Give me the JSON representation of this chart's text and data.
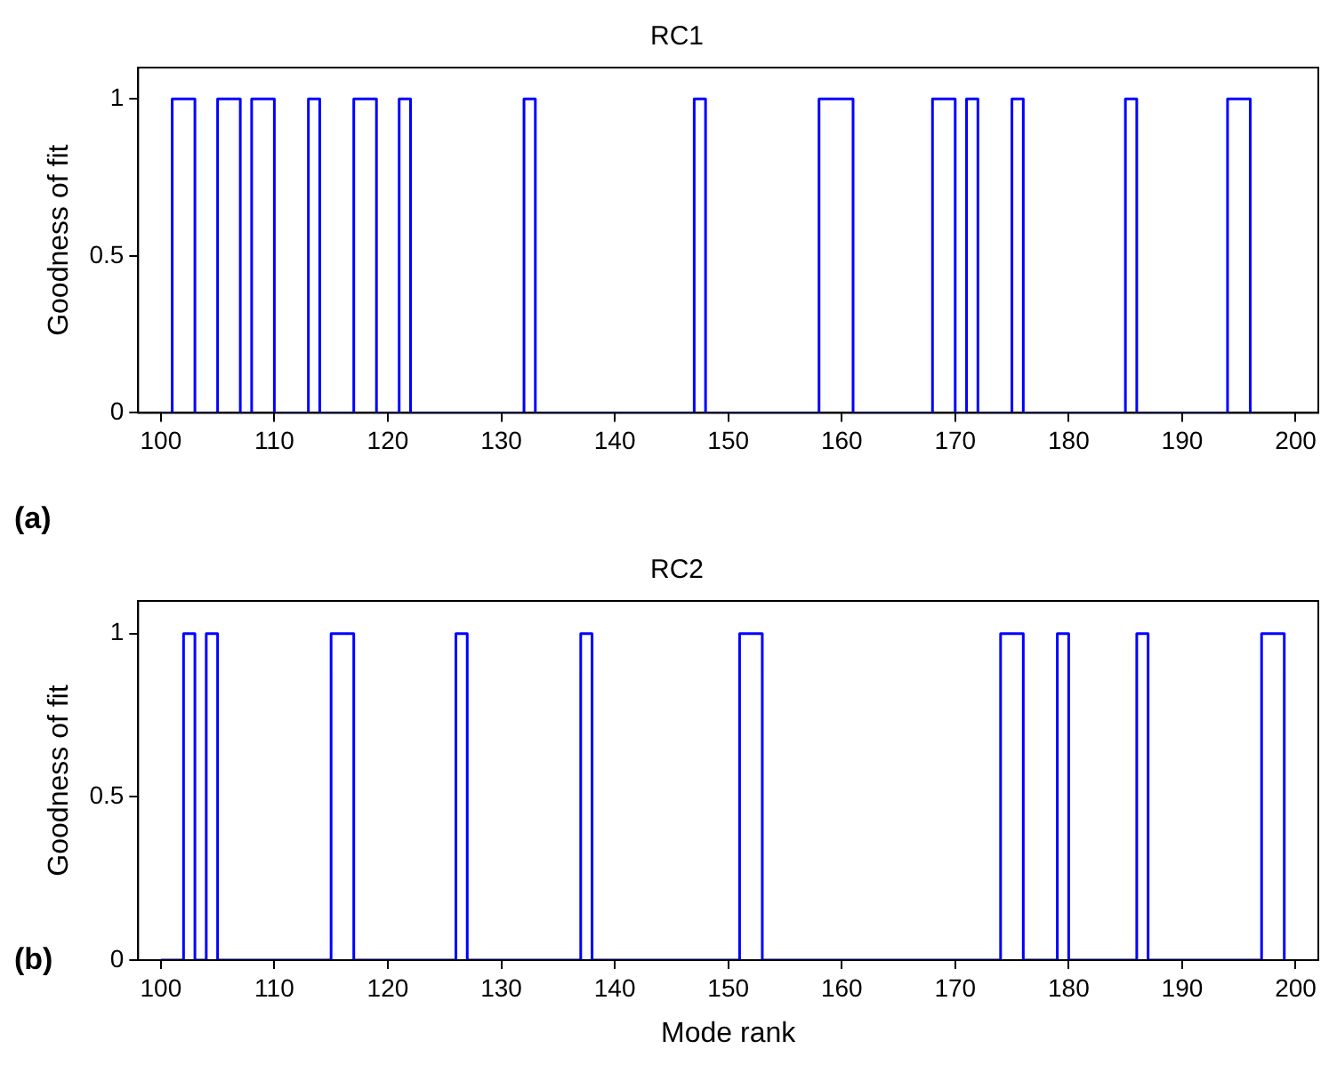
{
  "chart_data": [
    {
      "type": "step",
      "title": "RC1",
      "ylabel": "Goodness of fit",
      "annotations": [
        "(a)"
      ],
      "x": [
        100,
        101,
        103,
        105,
        107,
        108,
        110,
        113,
        114,
        117,
        119,
        121,
        122,
        132,
        133,
        147,
        148,
        158,
        161,
        168,
        170,
        171,
        172,
        175,
        176,
        185,
        186,
        194,
        196
      ],
      "series": [
        {
          "color": "#0000ff",
          "values": [
            0,
            1,
            0,
            1,
            0,
            1,
            0,
            1,
            0,
            1,
            0,
            1,
            0,
            1,
            0,
            1,
            0,
            1,
            0,
            1,
            0,
            1,
            0,
            1,
            0,
            1,
            0,
            1,
            0
          ]
        }
      ],
      "xlim": [
        98,
        202
      ],
      "xticks": [
        100,
        110,
        120,
        130,
        140,
        150,
        160,
        170,
        180,
        190,
        200
      ],
      "ylim": [
        0,
        1.1
      ],
      "yticks": [
        0,
        0.5,
        1
      ],
      "legend": false
    },
    {
      "type": "step",
      "title": "RC2",
      "ylabel": "Goodness of fit",
      "xlabel": "Mode rank",
      "annotations": [
        "(b)"
      ],
      "x": [
        100,
        102,
        103,
        104,
        105,
        115,
        117,
        126,
        127,
        137,
        138,
        151,
        153,
        174,
        176,
        179,
        180,
        186,
        187,
        197,
        199
      ],
      "series": [
        {
          "color": "#0000ff",
          "values": [
            0,
            1,
            0,
            1,
            0,
            1,
            0,
            1,
            0,
            1,
            0,
            1,
            0,
            1,
            0,
            1,
            0,
            1,
            0,
            1,
            0
          ]
        }
      ],
      "xlim": [
        98,
        202
      ],
      "xticks": [
        100,
        110,
        120,
        130,
        140,
        150,
        160,
        170,
        180,
        190,
        200
      ],
      "ylim": [
        0,
        1.1
      ],
      "yticks": [
        0,
        0.5,
        1
      ],
      "legend": false
    }
  ]
}
